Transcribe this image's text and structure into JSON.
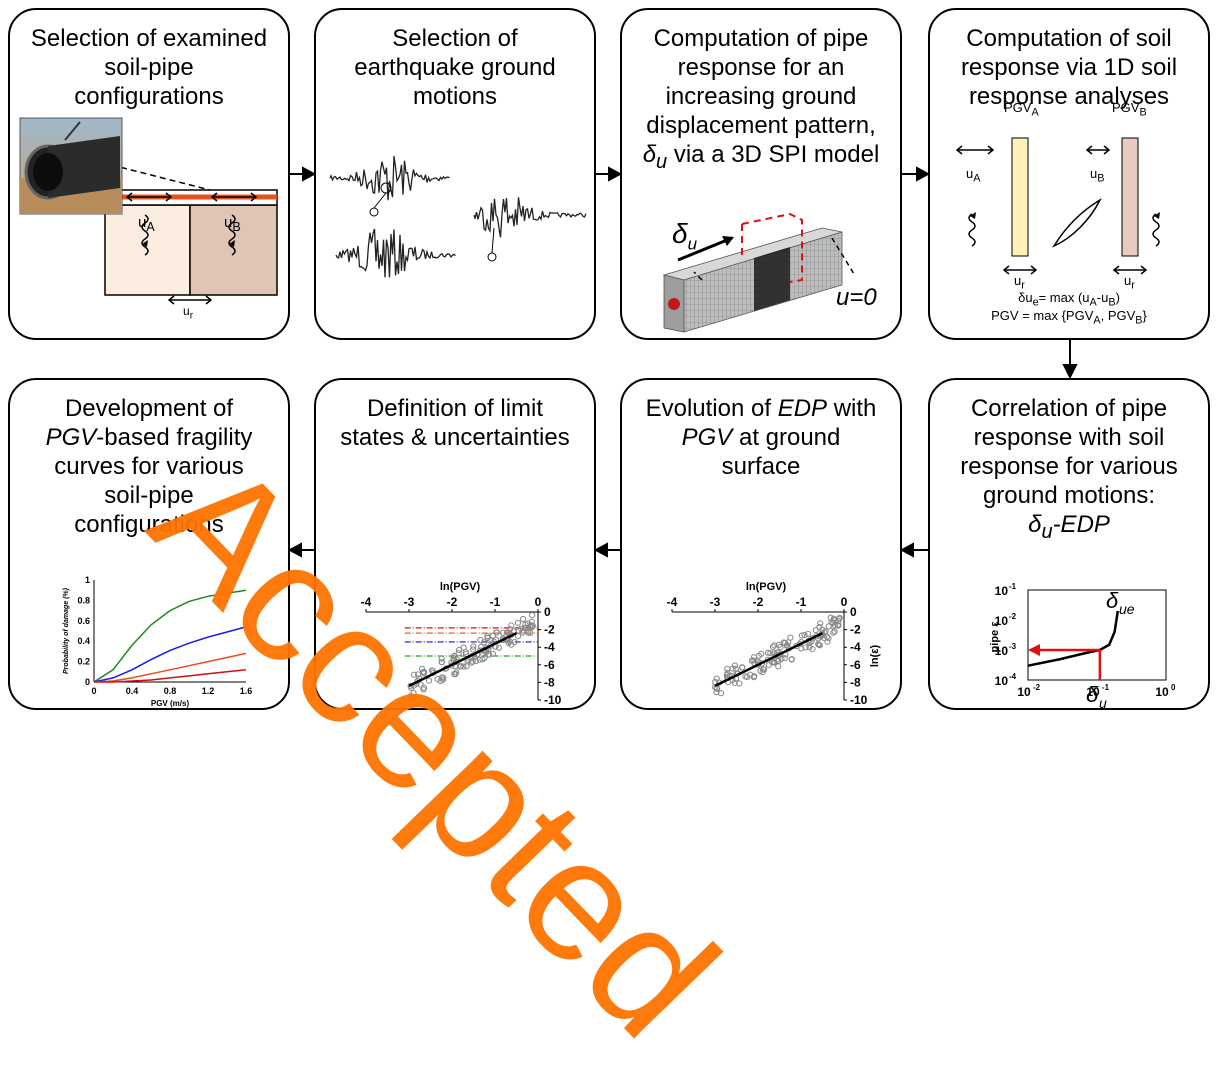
{
  "steps": {
    "s1": {
      "l1": "Selection of examined",
      "l2": "soil-pipe",
      "l3": "configurations",
      "uA": "u",
      "uA_sub": "A",
      "uB": "u",
      "uB_sub": "B",
      "ur": "u",
      "ur_sub": "r"
    },
    "s2": {
      "l1": "Selection of",
      "l2": "earthquake ground",
      "l3": "motions"
    },
    "s3": {
      "l1": "Computation of pipe",
      "l2": "response for an",
      "l3": "increasing ground",
      "l4": "displacement pattern,",
      "l5_sym": "δ",
      "l5_sub": "u",
      "l5_rest": " via a 3D SPI model",
      "delta": "δ",
      "delta_sub": "u",
      "u0": "u=0"
    },
    "s4": {
      "l1": "Computation of soil",
      "l2": "response via 1D soil",
      "l3": "response analyses",
      "pgvA": "PGV",
      "pgvA_sub": "A",
      "pgvB": "PGV",
      "pgvB_sub": "B",
      "uA": "u",
      "uA_sub": "A",
      "uB": "u",
      "uB_sub": "B",
      "ur": "u",
      "ur_sub": "r",
      "f1": "δu",
      "f1_sub": "e",
      "f1_rest": "= max (u",
      "f1_a": "A",
      "f1_dash": "-u",
      "f1_b": "B",
      "f1_end": ")",
      "f2": "PGV = max {PGV",
      "f2_a": "A",
      "f2_mid": ", PGV",
      "f2_b": "B",
      "f2_end": "}"
    },
    "s5": {
      "l1": "Correlation of pipe",
      "l2": "response with soil",
      "l3": "response for various",
      "l4": "ground motions:",
      "l5a": "δ",
      "l5sub": "u",
      "l5b": "-EDP",
      "ylabel": "pipe ε",
      "curve": "δ",
      "curve_sub": "ue",
      "xlabel": "δ",
      "xlabel_sub": "u",
      "yticks": [
        "10",
        "10",
        "10",
        "10"
      ],
      "yexp": [
        "-1",
        "-2",
        "-3",
        "-4"
      ],
      "xticks": [
        "10",
        "10",
        "10"
      ],
      "xexp": [
        "-2",
        "-1",
        "0"
      ]
    },
    "s6": {
      "l1a": "Evolution of ",
      "l1b": "EDP",
      "l1c": " with",
      "l2a": "PGV",
      "l2b": " at ground",
      "l3": "surface",
      "xlabel": "ln(PGV)",
      "ylabel": "ln(ε)",
      "xticks": [
        "-4",
        "-3",
        "-2",
        "-1",
        "0"
      ],
      "yticks": [
        "0",
        "-2",
        "-4",
        "-6",
        "-8",
        "-10"
      ]
    },
    "s7": {
      "l1": "Definition of limit",
      "l2": "states & uncertainties",
      "xlabel": "ln(PGV)",
      "xticks": [
        "-4",
        "-3",
        "-2",
        "-1",
        "0"
      ],
      "yticks": [
        "0",
        "-2",
        "-4",
        "-6",
        "-8",
        "-10"
      ]
    },
    "s8": {
      "l1": "Development of",
      "l2a": "PGV",
      "l2b": "-based fragility",
      "l3": "curves for various",
      "l4": "soil-pipe",
      "l5": "configurations",
      "xlabel": "PGV (m/s)",
      "ylabel": "Probability of damage (%)",
      "xticks": [
        "0",
        "0.4",
        "0.8",
        "1.2",
        "1.6"
      ],
      "yticks": [
        "0",
        "0.2",
        "0.4",
        "0.6",
        "0.8",
        "1"
      ]
    }
  },
  "stamp": "Accepted",
  "chart_data": [
    {
      "type": "line",
      "xlabel": "PGV (m/s)",
      "ylabel": "Probability of damage (%)",
      "xlim": [
        0,
        1.6
      ],
      "ylim": [
        0,
        1
      ],
      "x": [
        0,
        0.2,
        0.4,
        0.6,
        0.8,
        1.0,
        1.2,
        1.4,
        1.6
      ],
      "series": [
        {
          "color": "#1a8a1a",
          "values": [
            0,
            0.12,
            0.36,
            0.56,
            0.7,
            0.79,
            0.84,
            0.87,
            0.9
          ]
        },
        {
          "color": "#1a1aee",
          "values": [
            0,
            0.04,
            0.12,
            0.22,
            0.31,
            0.38,
            0.44,
            0.49,
            0.54
          ]
        },
        {
          "color": "#ee4a1a",
          "values": [
            0,
            0.01,
            0.04,
            0.08,
            0.12,
            0.16,
            0.2,
            0.24,
            0.28
          ]
        },
        {
          "color": "#cc1111",
          "values": [
            0,
            0,
            0.01,
            0.02,
            0.04,
            0.06,
            0.08,
            0.1,
            0.12
          ]
        }
      ]
    },
    {
      "type": "scatter",
      "xlabel": "ln(PGV)",
      "ylabel": "ln(ε)",
      "xlim": [
        -4,
        0
      ],
      "ylim": [
        -10,
        0
      ],
      "fit_line": [
        [
          -3,
          -8.4
        ],
        [
          -0.5,
          -2.4
        ]
      ]
    },
    {
      "type": "scatter",
      "xlabel": "ln(PGV)",
      "xlim": [
        -4,
        0
      ],
      "ylim": [
        -10,
        0
      ],
      "fit_line": [
        [
          -3,
          -8.4
        ],
        [
          -0.5,
          -2.4
        ]
      ],
      "limit_states": [
        {
          "y": -1.8,
          "color": "#dd1111"
        },
        {
          "y": -2.4,
          "color": "#ee6611"
        },
        {
          "y": -3.4,
          "color": "#1111dd"
        },
        {
          "y": -5.0,
          "color": "#22aa22"
        }
      ]
    },
    {
      "type": "line",
      "xlabel": "δu",
      "ylabel": "pipe ε",
      "xscale": "log",
      "yscale": "log",
      "xlim": [
        0.01,
        1
      ],
      "ylim": [
        0.0001,
        0.1
      ],
      "x": [
        0.01,
        0.03,
        0.07,
        0.11,
        0.15,
        0.18,
        0.2
      ],
      "values": [
        0.0003,
        0.0005,
        0.0008,
        0.001,
        0.0015,
        0.004,
        0.02
      ]
    }
  ]
}
